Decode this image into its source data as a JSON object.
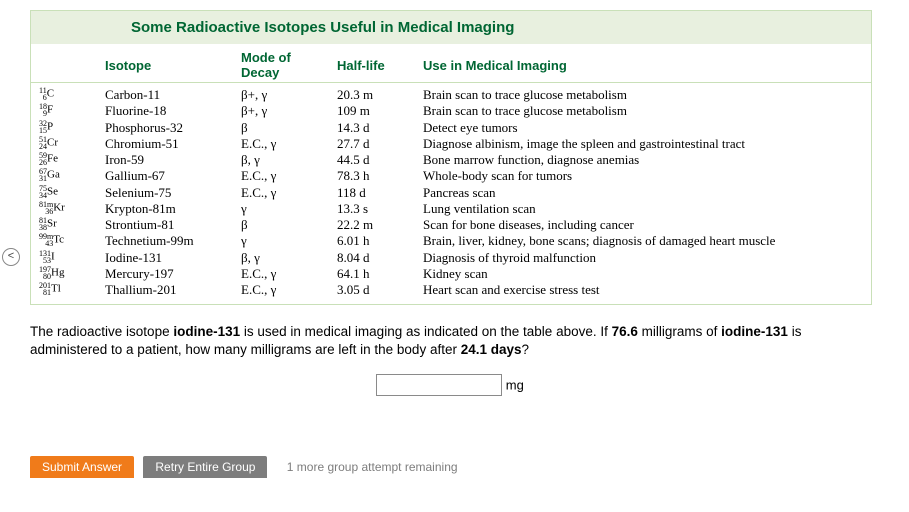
{
  "table": {
    "title": "Some Radioactive Isotopes Useful in Medical Imaging",
    "headers": {
      "isotope": "Isotope",
      "decay": "Mode of Decay",
      "halflife": "Half-life",
      "use": "Use in Medical Imaging"
    },
    "rows": [
      {
        "sym_top": "11",
        "sym_bot": "6",
        "sym": "C",
        "iso": "Carbon-11",
        "decay": "β+, γ",
        "hl": "20.3 m",
        "use": "Brain scan to trace glucose metabolism"
      },
      {
        "sym_top": "18",
        "sym_bot": "9",
        "sym": "F",
        "iso": "Fluorine-18",
        "decay": "β+, γ",
        "hl": "109 m",
        "use": "Brain scan to trace glucose metabolism"
      },
      {
        "sym_top": "32",
        "sym_bot": "15",
        "sym": "P",
        "iso": "Phosphorus-32",
        "decay": "β",
        "hl": "14.3 d",
        "use": "Detect eye tumors"
      },
      {
        "sym_top": "51",
        "sym_bot": "24",
        "sym": "Cr",
        "iso": "Chromium-51",
        "decay": "E.C., γ",
        "hl": "27.7 d",
        "use": "Diagnose albinism, image the spleen and gastrointestinal tract"
      },
      {
        "sym_top": "59",
        "sym_bot": "26",
        "sym": "Fe",
        "iso": "Iron-59",
        "decay": "β, γ",
        "hl": "44.5 d",
        "use": "Bone marrow function, diagnose anemias"
      },
      {
        "sym_top": "67",
        "sym_bot": "31",
        "sym": "Ga",
        "iso": "Gallium-67",
        "decay": "E.C., γ",
        "hl": "78.3 h",
        "use": "Whole-body scan for tumors"
      },
      {
        "sym_top": "75",
        "sym_bot": "34",
        "sym": "Se",
        "iso": "Selenium-75",
        "decay": "E.C., γ",
        "hl": "118 d",
        "use": "Pancreas scan"
      },
      {
        "sym_top": "81m",
        "sym_bot": "36",
        "sym": "Kr",
        "iso": "Krypton-81m",
        "decay": "γ",
        "hl": "13.3 s",
        "use": "Lung ventilation scan"
      },
      {
        "sym_top": "81",
        "sym_bot": "38",
        "sym": "Sr",
        "iso": "Strontium-81",
        "decay": "β",
        "hl": "22.2 m",
        "use": "Scan for bone diseases, including cancer"
      },
      {
        "sym_top": "99m",
        "sym_bot": "43",
        "sym": "Tc",
        "iso": "Technetium-99m",
        "decay": "γ",
        "hl": "6.01 h",
        "use": "Brain, liver, kidney, bone scans; diagnosis of damaged heart muscle"
      },
      {
        "sym_top": "131",
        "sym_bot": "53",
        "sym": "I",
        "iso": "Iodine-131",
        "decay": "β, γ",
        "hl": "8.04 d",
        "use": "Diagnosis of thyroid malfunction"
      },
      {
        "sym_top": "197",
        "sym_bot": "80",
        "sym": "Hg",
        "iso": "Mercury-197",
        "decay": "E.C., γ",
        "hl": "64.1 h",
        "use": "Kidney scan"
      },
      {
        "sym_top": "201",
        "sym_bot": "81",
        "sym": "Tl",
        "iso": "Thallium-201",
        "decay": "E.C., γ",
        "hl": "3.05 d",
        "use": "Heart scan and exercise stress test"
      }
    ]
  },
  "question": {
    "p1a": "The radioactive isotope ",
    "p1b": "iodine-131",
    "p1c": " is used in medical imaging as indicated on the table above. If ",
    "p1d": "76.6",
    "p1e": " milligrams of ",
    "p1f": "iodine-131",
    "p1g": " is administered to a patient, how many milligrams are left in the body after ",
    "p1h": "24.1 days",
    "p1i": "?"
  },
  "answer": {
    "unit": "mg"
  },
  "buttons": {
    "submit": "Submit Answer",
    "retry": "Retry Entire Group",
    "remaining": "1 more group attempt remaining"
  }
}
